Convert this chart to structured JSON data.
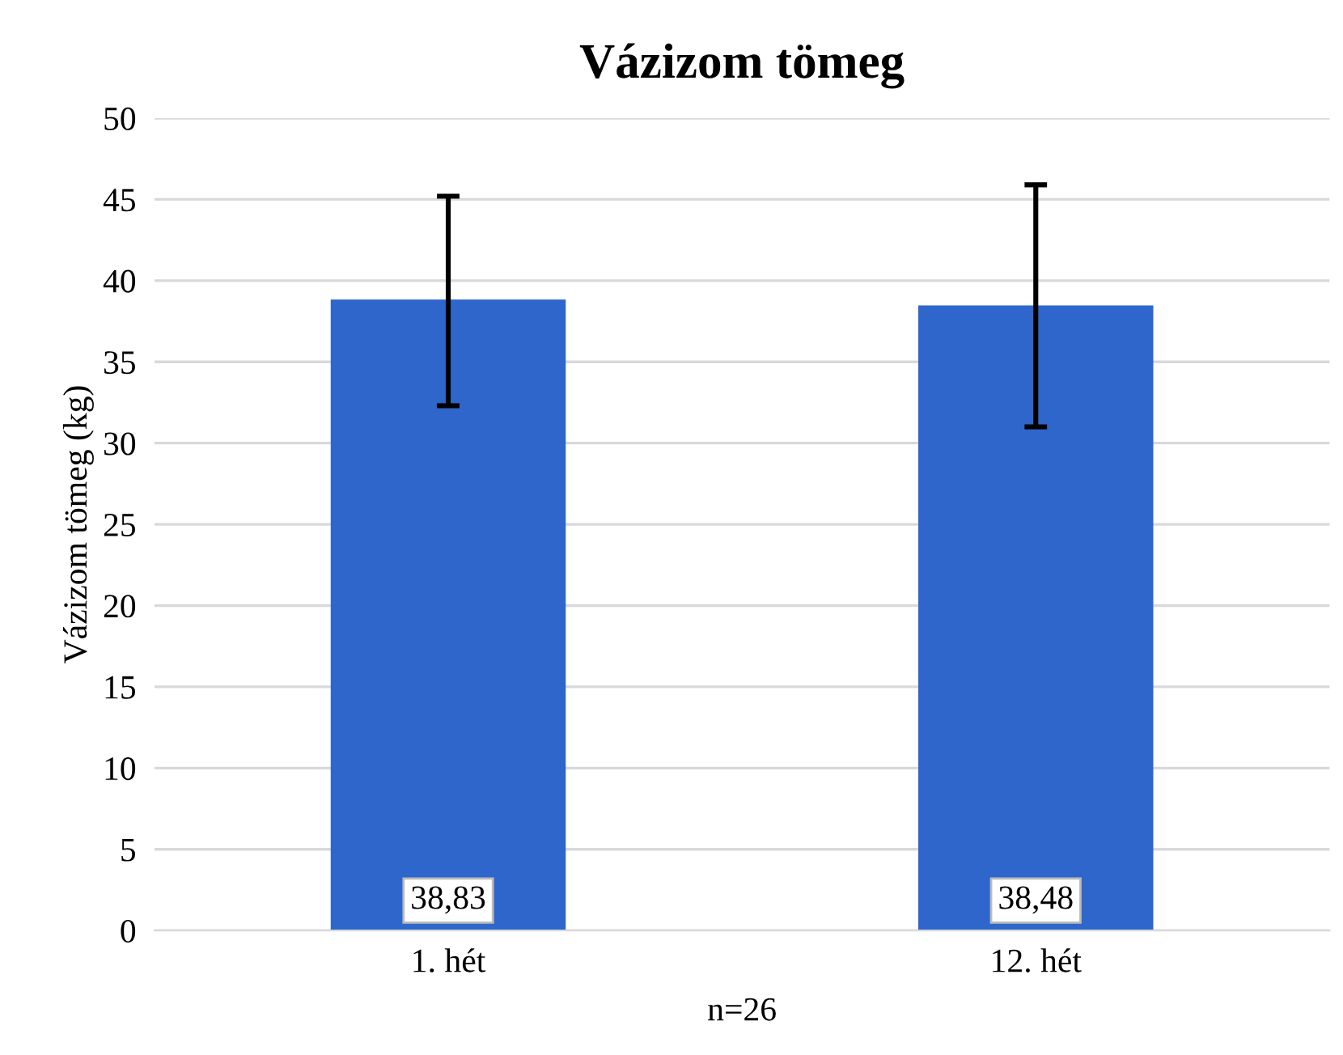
{
  "chart_data": {
    "type": "bar",
    "title": "Vázizom tömeg",
    "xlabel": "n=26",
    "ylabel": "Vázizom tömeg (kg)",
    "categories": [
      "1. hét",
      "12. hét"
    ],
    "values": [
      38.83,
      38.48
    ],
    "color": "#2f66cc",
    "errors": [
      [
        32.3,
        45.2
      ],
      [
        31.0,
        45.9
      ]
    ],
    "value_labels": [
      "38,83",
      "38,48"
    ],
    "ylim": [
      0,
      50
    ],
    "yticks": [
      0,
      5,
      10,
      15,
      20,
      25,
      30,
      35,
      40,
      45,
      50
    ],
    "grid": "y"
  }
}
